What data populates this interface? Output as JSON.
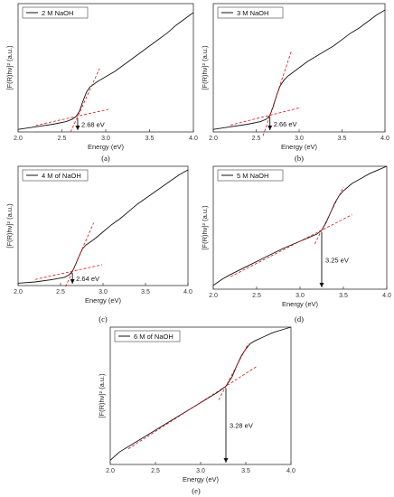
{
  "chart_data": [
    {
      "type": "line",
      "panel_label": "(a)",
      "legend": "2 M NaOH",
      "xlabel": "Energy (eV)",
      "ylabel": "[F(R)hν]²  (a.u.)",
      "xlim": [
        2.0,
        4.0
      ],
      "xticks": [
        "2.0",
        "2.5",
        "3.0",
        "3.5",
        "4.0"
      ],
      "annotation": "2.68 eV",
      "band_gap": 2.68,
      "series": [
        {
          "x": [
            2.0,
            2.2,
            2.4,
            2.55,
            2.62,
            2.66,
            2.7,
            2.74,
            2.78,
            2.82,
            2.86,
            2.9,
            3.0,
            3.1,
            3.2,
            3.3,
            3.4,
            3.5,
            3.6,
            3.7,
            3.8,
            3.9,
            4.0
          ],
          "y": [
            0.02,
            0.04,
            0.06,
            0.08,
            0.1,
            0.12,
            0.16,
            0.24,
            0.31,
            0.35,
            0.37,
            0.39,
            0.43,
            0.47,
            0.52,
            0.57,
            0.62,
            0.67,
            0.72,
            0.77,
            0.83,
            0.88,
            0.93
          ]
        }
      ]
    },
    {
      "type": "line",
      "panel_label": "(b)",
      "legend": "3 M NaOH",
      "xlabel": "Energy (eV)",
      "ylabel": "[F(R)hν]²  (a.u.)",
      "xlim": [
        2.0,
        4.0
      ],
      "xticks": [
        "2.0",
        "2.5",
        "3.0",
        "3.5",
        "4.0"
      ],
      "annotation": "2.66 eV",
      "band_gap": 2.66,
      "series": [
        {
          "x": [
            2.0,
            2.2,
            2.4,
            2.55,
            2.62,
            2.66,
            2.7,
            2.74,
            2.78,
            2.82,
            2.86,
            2.9,
            3.0,
            3.1,
            3.2,
            3.3,
            3.4,
            3.5,
            3.6,
            3.7,
            3.8,
            3.9,
            4.0
          ],
          "y": [
            0.02,
            0.04,
            0.06,
            0.08,
            0.1,
            0.13,
            0.2,
            0.29,
            0.36,
            0.4,
            0.43,
            0.45,
            0.5,
            0.55,
            0.59,
            0.63,
            0.67,
            0.72,
            0.77,
            0.81,
            0.86,
            0.91,
            0.95
          ]
        }
      ]
    },
    {
      "type": "line",
      "panel_label": "(c)",
      "legend": "4 M of NaOH",
      "xlabel": "Energy (eV)",
      "ylabel": "[F(R)hν]²  (a.u.)",
      "xlim": [
        2.0,
        4.0
      ],
      "xticks": [
        "2.0",
        "2.5",
        "3.0",
        "3.5",
        "4.0"
      ],
      "annotation": "2.64 eV",
      "band_gap": 2.64,
      "series": [
        {
          "x": [
            2.0,
            2.2,
            2.4,
            2.55,
            2.6,
            2.64,
            2.68,
            2.72,
            2.76,
            2.8,
            2.84,
            2.9,
            3.0,
            3.1,
            3.2,
            3.3,
            3.4,
            3.5,
            3.6,
            3.7,
            3.8,
            3.9,
            4.0
          ],
          "y": [
            0.02,
            0.03,
            0.05,
            0.07,
            0.09,
            0.12,
            0.18,
            0.25,
            0.31,
            0.34,
            0.36,
            0.39,
            0.45,
            0.51,
            0.56,
            0.62,
            0.68,
            0.73,
            0.78,
            0.83,
            0.88,
            0.93,
            0.97
          ]
        }
      ]
    },
    {
      "type": "line",
      "panel_label": "(d)",
      "legend": "5 M NaOH",
      "xlabel": "Energy (eV)",
      "ylabel": "[F(R)hν]²  (a.u.)",
      "xlim": [
        2.0,
        4.0
      ],
      "xticks": [
        "2.0",
        "2.5",
        "3.0",
        "3.5",
        "4.0"
      ],
      "annotation": "3.25 eV",
      "band_gap": 3.25,
      "series": [
        {
          "x": [
            2.0,
            2.1,
            2.2,
            2.4,
            2.6,
            2.8,
            3.0,
            3.1,
            3.2,
            3.25,
            3.3,
            3.35,
            3.4,
            3.45,
            3.5,
            3.55,
            3.6,
            3.7,
            3.8,
            3.9,
            4.0
          ],
          "y": [
            0.03,
            0.08,
            0.12,
            0.19,
            0.26,
            0.33,
            0.39,
            0.42,
            0.45,
            0.48,
            0.54,
            0.62,
            0.7,
            0.76,
            0.8,
            0.83,
            0.86,
            0.9,
            0.94,
            0.97,
            1.0
          ]
        }
      ]
    },
    {
      "type": "line",
      "panel_label": "(e)",
      "legend": "6 M of NaOH",
      "xlabel": "Energy (eV)",
      "ylabel": "[F(R)hν]²  (a.u.)",
      "xlim": [
        2.0,
        4.0
      ],
      "xticks": [
        "2.0",
        "2.5",
        "3.0",
        "3.5",
        "4.0"
      ],
      "annotation": "3.28 eV",
      "band_gap": 3.28,
      "series": [
        {
          "x": [
            2.0,
            2.1,
            2.2,
            2.4,
            2.6,
            2.8,
            3.0,
            3.1,
            3.2,
            3.28,
            3.35,
            3.4,
            3.45,
            3.5,
            3.55,
            3.6,
            3.7,
            3.8,
            3.9,
            4.0
          ],
          "y": [
            0.03,
            0.09,
            0.13,
            0.21,
            0.29,
            0.37,
            0.45,
            0.49,
            0.53,
            0.57,
            0.64,
            0.72,
            0.79,
            0.84,
            0.88,
            0.9,
            0.93,
            0.96,
            0.98,
            1.0
          ]
        }
      ]
    }
  ]
}
